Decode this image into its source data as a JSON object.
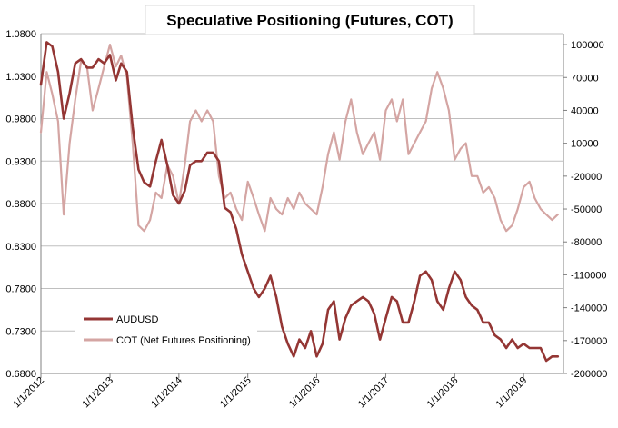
{
  "chart_data": {
    "type": "line",
    "title": "Speculative Positioning (Futures, COT)",
    "x_tick_labels": [
      "1/1/2012",
      "1/1/2013",
      "1/1/2014",
      "1/1/2015",
      "1/1/2016",
      "1/1/2017",
      "1/1/2018",
      "1/1/2019"
    ],
    "x_range": [
      "2012-01-01",
      "2019-07-31"
    ],
    "y_left": {
      "ylim": [
        0.68,
        1.08
      ],
      "ticks": [
        "0.6800",
        "0.7300",
        "0.7800",
        "0.8300",
        "0.8800",
        "0.9300",
        "0.9800",
        "1.0300",
        "1.0800"
      ]
    },
    "y_right": {
      "ylim": [
        -200000,
        110000
      ],
      "ticks": [
        "-200000",
        "-170000",
        "-140000",
        "-110000",
        "-80000",
        "-50000",
        "-20000",
        "10000",
        "40000",
        "70000",
        "100000"
      ]
    },
    "grid": true,
    "legend_position": "bottom-left",
    "series": [
      {
        "name": "AUDUSD",
        "axis": "left",
        "color": "#943634",
        "x": [
          "2012-01-01",
          "2012-02-01",
          "2012-03-01",
          "2012-04-01",
          "2012-05-01",
          "2012-06-01",
          "2012-07-01",
          "2012-08-01",
          "2012-09-01",
          "2012-10-01",
          "2012-11-01",
          "2012-12-01",
          "2013-01-01",
          "2013-02-01",
          "2013-03-01",
          "2013-04-01",
          "2013-05-01",
          "2013-06-01",
          "2013-07-01",
          "2013-08-01",
          "2013-09-01",
          "2013-10-01",
          "2013-11-01",
          "2013-12-01",
          "2014-01-01",
          "2014-02-01",
          "2014-03-01",
          "2014-04-01",
          "2014-05-01",
          "2014-06-01",
          "2014-07-01",
          "2014-08-01",
          "2014-09-01",
          "2014-10-01",
          "2014-11-01",
          "2014-12-01",
          "2015-01-01",
          "2015-02-01",
          "2015-03-01",
          "2015-04-01",
          "2015-05-01",
          "2015-06-01",
          "2015-07-01",
          "2015-08-01",
          "2015-09-01",
          "2015-10-01",
          "2015-11-01",
          "2015-12-01",
          "2016-01-01",
          "2016-02-01",
          "2016-03-01",
          "2016-04-01",
          "2016-05-01",
          "2016-06-01",
          "2016-07-01",
          "2016-08-01",
          "2016-09-01",
          "2016-10-01",
          "2016-11-01",
          "2016-12-01",
          "2017-01-01",
          "2017-02-01",
          "2017-03-01",
          "2017-04-01",
          "2017-05-01",
          "2017-06-01",
          "2017-07-01",
          "2017-08-01",
          "2017-09-01",
          "2017-10-01",
          "2017-11-01",
          "2017-12-01",
          "2018-01-01",
          "2018-02-01",
          "2018-03-01",
          "2018-04-01",
          "2018-05-01",
          "2018-06-01",
          "2018-07-01",
          "2018-08-01",
          "2018-09-01",
          "2018-10-01",
          "2018-11-01",
          "2018-12-01",
          "2019-01-01",
          "2019-02-01",
          "2019-03-01",
          "2019-04-01",
          "2019-05-01",
          "2019-06-01",
          "2019-07-01"
        ],
        "values": [
          1.02,
          1.07,
          1.065,
          1.035,
          0.98,
          1.01,
          1.045,
          1.05,
          1.04,
          1.04,
          1.05,
          1.045,
          1.055,
          1.025,
          1.045,
          1.035,
          0.97,
          0.92,
          0.905,
          0.9,
          0.93,
          0.955,
          0.925,
          0.89,
          0.88,
          0.895,
          0.925,
          0.93,
          0.93,
          0.94,
          0.94,
          0.93,
          0.875,
          0.87,
          0.85,
          0.82,
          0.8,
          0.78,
          0.77,
          0.78,
          0.795,
          0.77,
          0.735,
          0.715,
          0.7,
          0.72,
          0.71,
          0.73,
          0.7,
          0.715,
          0.755,
          0.765,
          0.72,
          0.745,
          0.76,
          0.765,
          0.77,
          0.765,
          0.75,
          0.72,
          0.745,
          0.77,
          0.765,
          0.74,
          0.74,
          0.765,
          0.795,
          0.8,
          0.79,
          0.765,
          0.755,
          0.78,
          0.8,
          0.79,
          0.77,
          0.76,
          0.755,
          0.74,
          0.74,
          0.725,
          0.72,
          0.71,
          0.72,
          0.71,
          0.715,
          0.71,
          0.71,
          0.71,
          0.695,
          0.7,
          0.7
        ]
      },
      {
        "name": "COT (Net Futures Positioning)",
        "axis": "right",
        "color": "#d4a5a3",
        "x": [
          "2012-01-01",
          "2012-02-01",
          "2012-03-01",
          "2012-04-01",
          "2012-05-01",
          "2012-06-01",
          "2012-07-01",
          "2012-08-01",
          "2012-09-01",
          "2012-10-01",
          "2012-11-01",
          "2012-12-01",
          "2013-01-01",
          "2013-02-01",
          "2013-03-01",
          "2013-04-01",
          "2013-05-01",
          "2013-06-01",
          "2013-07-01",
          "2013-08-01",
          "2013-09-01",
          "2013-10-01",
          "2013-11-01",
          "2013-12-01",
          "2014-01-01",
          "2014-02-01",
          "2014-03-01",
          "2014-04-01",
          "2014-05-01",
          "2014-06-01",
          "2014-07-01",
          "2014-08-01",
          "2014-09-01",
          "2014-10-01",
          "2014-11-01",
          "2014-12-01",
          "2015-01-01",
          "2015-02-01",
          "2015-03-01",
          "2015-04-01",
          "2015-05-01",
          "2015-06-01",
          "2015-07-01",
          "2015-08-01",
          "2015-09-01",
          "2015-10-01",
          "2015-11-01",
          "2015-12-01",
          "2016-01-01",
          "2016-02-01",
          "2016-03-01",
          "2016-04-01",
          "2016-05-01",
          "2016-06-01",
          "2016-07-01",
          "2016-08-01",
          "2016-09-01",
          "2016-10-01",
          "2016-11-01",
          "2016-12-01",
          "2017-01-01",
          "2017-02-01",
          "2017-03-01",
          "2017-04-01",
          "2017-05-01",
          "2017-06-01",
          "2017-07-01",
          "2017-08-01",
          "2017-09-01",
          "2017-10-01",
          "2017-11-01",
          "2017-12-01",
          "2018-01-01",
          "2018-02-01",
          "2018-03-01",
          "2018-04-01",
          "2018-05-01",
          "2018-06-01",
          "2018-07-01",
          "2018-08-01",
          "2018-09-01",
          "2018-10-01",
          "2018-11-01",
          "2018-12-01",
          "2019-01-01",
          "2019-02-01",
          "2019-03-01",
          "2019-04-01",
          "2019-05-01",
          "2019-06-01",
          "2019-07-01"
        ],
        "values": [
          20000,
          75000,
          55000,
          30000,
          -55000,
          10000,
          50000,
          85000,
          80000,
          40000,
          60000,
          80000,
          100000,
          80000,
          90000,
          70000,
          10000,
          -65000,
          -70000,
          -60000,
          -35000,
          -40000,
          -10000,
          -20000,
          -45000,
          -10000,
          30000,
          40000,
          30000,
          40000,
          30000,
          -20000,
          -40000,
          -35000,
          -50000,
          -60000,
          -25000,
          -40000,
          -55000,
          -70000,
          -40000,
          -50000,
          -55000,
          -40000,
          -50000,
          -35000,
          -45000,
          -50000,
          -55000,
          -30000,
          0,
          20000,
          -5000,
          30000,
          50000,
          20000,
          0,
          10000,
          20000,
          -5000,
          40000,
          50000,
          30000,
          50000,
          0,
          10000,
          20000,
          30000,
          60000,
          75000,
          60000,
          40000,
          -5000,
          5000,
          10000,
          -20000,
          -20000,
          -35000,
          -30000,
          -40000,
          -60000,
          -70000,
          -65000,
          -50000,
          -30000,
          -25000,
          -40000,
          -50000,
          -55000,
          -60000,
          -55000
        ]
      }
    ]
  }
}
